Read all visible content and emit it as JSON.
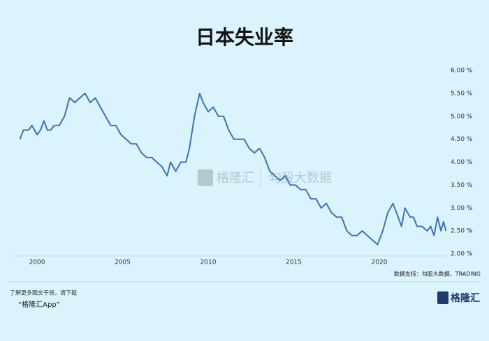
{
  "chart_data": {
    "type": "line",
    "title": "日本失业率",
    "x": [
      1999.0,
      1999.2,
      1999.5,
      1999.7,
      2000.0,
      2000.2,
      2000.4,
      2000.6,
      2000.8,
      2001.0,
      2001.3,
      2001.6,
      2001.9,
      2002.2,
      2002.5,
      2002.8,
      2003.1,
      2003.4,
      2003.7,
      2004.0,
      2004.3,
      2004.6,
      2004.9,
      2005.2,
      2005.5,
      2005.8,
      2006.1,
      2006.4,
      2006.7,
      2007.0,
      2007.3,
      2007.6,
      2007.8,
      2008.1,
      2008.4,
      2008.7,
      2008.9,
      2009.2,
      2009.5,
      2009.7,
      2010.0,
      2010.3,
      2010.6,
      2010.9,
      2011.2,
      2011.5,
      2011.8,
      2012.1,
      2012.4,
      2012.7,
      2013.0,
      2013.3,
      2013.6,
      2013.9,
      2014.2,
      2014.5,
      2014.8,
      2015.1,
      2015.4,
      2015.7,
      2016.0,
      2016.3,
      2016.6,
      2016.9,
      2017.2,
      2017.5,
      2017.8,
      2018.1,
      2018.4,
      2018.7,
      2019.0,
      2019.3,
      2019.6,
      2019.9,
      2020.2,
      2020.5,
      2020.8,
      2021.0,
      2021.3,
      2021.5,
      2021.8,
      2022.0,
      2022.2,
      2022.5,
      2022.8,
      2023.0,
      2023.2,
      2023.4,
      2023.6,
      2023.75,
      2023.9
    ],
    "series": [
      {
        "name": "日本失业率",
        "color": "#3a74b4",
        "values": [
          4.5,
          4.7,
          4.7,
          4.8,
          4.6,
          4.7,
          4.9,
          4.7,
          4.7,
          4.8,
          4.8,
          5.0,
          5.4,
          5.3,
          5.4,
          5.5,
          5.3,
          5.4,
          5.2,
          5.0,
          4.8,
          4.8,
          4.6,
          4.5,
          4.4,
          4.4,
          4.2,
          4.1,
          4.1,
          4.0,
          3.9,
          3.7,
          4.0,
          3.8,
          4.0,
          4.0,
          4.3,
          5.0,
          5.5,
          5.3,
          5.1,
          5.2,
          5.0,
          5.0,
          4.7,
          4.5,
          4.5,
          4.5,
          4.3,
          4.2,
          4.3,
          4.1,
          3.8,
          3.7,
          3.6,
          3.7,
          3.5,
          3.5,
          3.4,
          3.4,
          3.2,
          3.2,
          3.0,
          3.1,
          2.9,
          2.8,
          2.8,
          2.5,
          2.4,
          2.4,
          2.5,
          2.4,
          2.3,
          2.2,
          2.5,
          2.9,
          3.1,
          2.9,
          2.6,
          3.0,
          2.8,
          2.8,
          2.6,
          2.6,
          2.5,
          2.6,
          2.4,
          2.8,
          2.5,
          2.7,
          2.5
        ]
      }
    ],
    "xlim": [
      1998.65,
      2023.96
    ],
    "xticks": [
      2000,
      2005,
      2010,
      2015,
      2020
    ],
    "ylim": [
      2,
      6
    ],
    "yticks": [
      {
        "value": 2,
        "label": "2.00 %"
      },
      {
        "value": 2.5,
        "label": "2.50 %"
      },
      {
        "value": 3,
        "label": "3.00 %"
      },
      {
        "value": 3.5,
        "label": "3.50 %"
      },
      {
        "value": 4,
        "label": "4.00 %"
      },
      {
        "value": 4.5,
        "label": "4.50 %"
      },
      {
        "value": 5,
        "label": "5.00 %"
      },
      {
        "value": 5.5,
        "label": "5.50 %"
      },
      {
        "value": 6,
        "label": "6.00 %"
      }
    ],
    "grid": false,
    "source": "数据支持：勾股大数据、TRADING"
  },
  "watermark": {
    "brand": "格隆汇",
    "partner": "勾股大数据"
  },
  "footer": {
    "line1": "了解更多图文干货，请下载",
    "line2": "“格隆汇App”",
    "logo": "格隆汇"
  }
}
